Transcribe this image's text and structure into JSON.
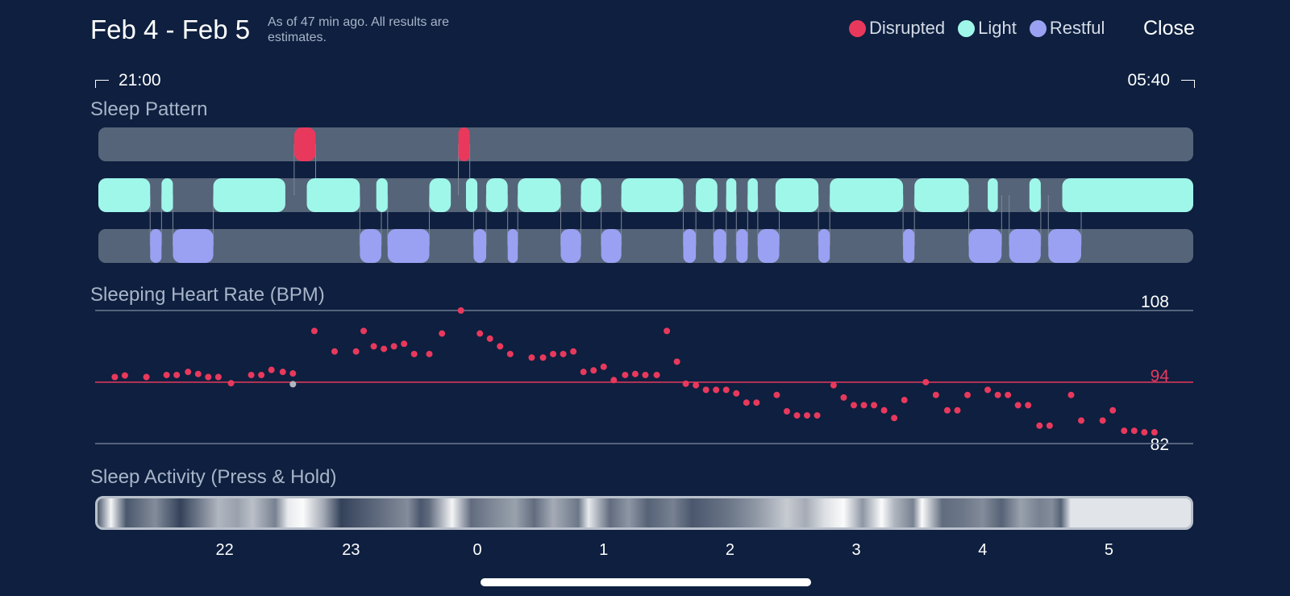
{
  "header": {
    "title": "Feb 4 - Feb 5",
    "subtitle": "As of 47 min ago. All results are estimates.",
    "close_label": "Close"
  },
  "legend": [
    {
      "label": "Disrupted",
      "color": "#e8395d"
    },
    {
      "label": "Light",
      "color": "#9ff7ea"
    },
    {
      "label": "Restful",
      "color": "#9aa1f2"
    }
  ],
  "timeline": {
    "start": "21:00",
    "end": "05:40"
  },
  "sleep_pattern": {
    "label": "Sleep Pattern",
    "colors": {
      "disrupted": "#e8395d",
      "light": "#9ff7ea",
      "restful": "#9aa1f2",
      "track": "#556478"
    },
    "start_hour": 21.0,
    "end_hour": 29.667,
    "disrupted": [
      [
        22.55,
        22.72
      ],
      [
        23.85,
        23.94
      ]
    ],
    "light": [
      [
        21.0,
        21.41
      ],
      [
        21.5,
        21.59
      ],
      [
        21.91,
        22.48
      ],
      [
        22.65,
        23.07
      ],
      [
        23.2,
        23.29
      ],
      [
        23.62,
        23.79
      ],
      [
        23.91,
        24.0
      ],
      [
        24.07,
        24.24
      ],
      [
        24.32,
        24.66
      ],
      [
        24.82,
        24.98
      ],
      [
        25.14,
        25.63
      ],
      [
        25.73,
        25.9
      ],
      [
        25.97,
        26.05
      ],
      [
        26.14,
        26.22
      ],
      [
        26.36,
        26.7
      ],
      [
        26.79,
        27.37
      ],
      [
        27.46,
        27.89
      ],
      [
        28.04,
        28.12
      ],
      [
        28.37,
        28.46
      ],
      [
        28.63,
        29.667
      ]
    ],
    "restful": [
      [
        21.41,
        21.5
      ],
      [
        21.59,
        21.91
      ],
      [
        23.07,
        23.24
      ],
      [
        23.29,
        23.62
      ],
      [
        23.97,
        24.07
      ],
      [
        24.24,
        24.32
      ],
      [
        24.66,
        24.82
      ],
      [
        24.98,
        25.14
      ],
      [
        25.63,
        25.73
      ],
      [
        25.87,
        25.97
      ],
      [
        26.05,
        26.14
      ],
      [
        26.22,
        26.39
      ],
      [
        26.7,
        26.79
      ],
      [
        27.37,
        27.46
      ],
      [
        27.89,
        28.15
      ],
      [
        28.21,
        28.46
      ],
      [
        28.52,
        28.78
      ]
    ]
  },
  "heart_rate": {
    "label": "Sleeping Heart Rate (BPM)",
    "max_label": "108",
    "avg_label": "94",
    "min_label": "82",
    "max": 108,
    "avg": 94,
    "min": 82,
    "point_color": "#e8395d",
    "avg_color": "#e8395d",
    "outlier_color": "#b0b6c0",
    "points": [
      [
        21.13,
        95.0
      ],
      [
        21.21,
        95.3
      ],
      [
        21.38,
        95.0
      ],
      [
        21.54,
        95.4
      ],
      [
        21.62,
        95.4
      ],
      [
        21.71,
        96.0
      ],
      [
        21.79,
        95.6
      ],
      [
        21.87,
        95.0
      ],
      [
        21.95,
        95.0
      ],
      [
        22.05,
        93.8
      ],
      [
        22.21,
        95.4
      ],
      [
        22.29,
        95.4
      ],
      [
        22.37,
        96.4
      ],
      [
        22.46,
        96.0
      ],
      [
        22.54,
        95.7
      ],
      [
        22.71,
        104.0
      ],
      [
        22.87,
        100.0
      ],
      [
        23.04,
        100.0
      ],
      [
        23.1,
        104.0
      ],
      [
        23.18,
        101.0
      ],
      [
        23.26,
        100.5
      ],
      [
        23.34,
        101.0
      ],
      [
        23.42,
        101.5
      ],
      [
        23.5,
        99.5
      ],
      [
        23.62,
        99.5
      ],
      [
        23.72,
        103.5
      ],
      [
        23.87,
        108.0
      ],
      [
        24.02,
        103.5
      ],
      [
        24.1,
        102.5
      ],
      [
        24.18,
        101.0
      ],
      [
        24.26,
        99.5
      ],
      [
        24.43,
        98.8
      ],
      [
        24.52,
        98.8
      ],
      [
        24.6,
        99.5
      ],
      [
        24.68,
        99.5
      ],
      [
        24.76,
        100.0
      ],
      [
        24.84,
        96.0
      ],
      [
        24.92,
        96.3
      ],
      [
        25.0,
        97.0
      ],
      [
        25.08,
        94.4
      ],
      [
        25.17,
        95.4
      ],
      [
        25.25,
        95.6
      ],
      [
        25.33,
        95.4
      ],
      [
        25.42,
        95.4
      ],
      [
        25.5,
        104.0
      ],
      [
        25.58,
        98.0
      ],
      [
        25.65,
        93.7
      ],
      [
        25.73,
        93.4
      ],
      [
        25.81,
        92.5
      ],
      [
        25.89,
        92.5
      ],
      [
        25.97,
        92.5
      ],
      [
        26.05,
        91.8
      ],
      [
        26.13,
        90.0
      ],
      [
        26.21,
        90.0
      ],
      [
        26.37,
        91.5
      ],
      [
        26.45,
        88.3
      ],
      [
        26.53,
        87.5
      ],
      [
        26.61,
        87.5
      ],
      [
        26.69,
        87.5
      ],
      [
        26.82,
        93.4
      ],
      [
        26.9,
        91.0
      ],
      [
        26.98,
        89.5
      ],
      [
        27.06,
        89.5
      ],
      [
        27.14,
        89.5
      ],
      [
        27.22,
        88.5
      ],
      [
        27.3,
        87.0
      ],
      [
        27.38,
        90.5
      ],
      [
        27.55,
        94.0
      ],
      [
        27.63,
        91.5
      ],
      [
        27.72,
        88.5
      ],
      [
        27.8,
        88.5
      ],
      [
        27.88,
        91.5
      ],
      [
        28.04,
        92.5
      ],
      [
        28.12,
        91.5
      ],
      [
        28.2,
        91.5
      ],
      [
        28.28,
        89.5
      ],
      [
        28.36,
        89.5
      ],
      [
        28.45,
        85.5
      ],
      [
        28.53,
        85.5
      ],
      [
        28.7,
        91.5
      ],
      [
        28.78,
        86.5
      ],
      [
        28.95,
        86.5
      ],
      [
        29.03,
        88.5
      ],
      [
        29.12,
        84.5
      ],
      [
        29.2,
        84.5
      ],
      [
        29.28,
        84.2
      ],
      [
        29.36,
        84.2
      ]
    ],
    "outliers": [
      [
        22.54,
        93.6
      ]
    ]
  },
  "sleep_activity": {
    "label": "Sleep Activity (Press & Hold)",
    "base_color": "#1d2d48",
    "highlight_color": "#ffffff",
    "bands": [
      [
        21.0,
        0.25
      ],
      [
        21.1,
        0.95
      ],
      [
        21.22,
        0.2
      ],
      [
        21.45,
        0.45
      ],
      [
        21.65,
        0.1
      ],
      [
        21.95,
        0.65
      ],
      [
        22.1,
        0.55
      ],
      [
        22.22,
        0.7
      ],
      [
        22.4,
        0.4
      ],
      [
        22.5,
        0.9
      ],
      [
        22.62,
        0.98
      ],
      [
        22.78,
        0.6
      ],
      [
        22.92,
        0.1
      ],
      [
        23.15,
        0.25
      ],
      [
        23.45,
        0.45
      ],
      [
        23.55,
        0.2
      ],
      [
        23.62,
        0.3
      ],
      [
        23.8,
        0.95
      ],
      [
        23.95,
        0.3
      ],
      [
        24.15,
        0.45
      ],
      [
        24.3,
        0.55
      ],
      [
        24.45,
        0.3
      ],
      [
        24.6,
        0.6
      ],
      [
        24.8,
        0.35
      ],
      [
        24.88,
        0.9
      ],
      [
        25.05,
        0.3
      ],
      [
        25.2,
        0.5
      ],
      [
        25.35,
        0.25
      ],
      [
        25.55,
        0.4
      ],
      [
        25.7,
        0.2
      ],
      [
        26.0,
        0.35
      ],
      [
        26.2,
        0.5
      ],
      [
        26.45,
        0.75
      ],
      [
        26.6,
        0.6
      ],
      [
        26.75,
        0.85
      ],
      [
        26.9,
        0.98
      ],
      [
        27.05,
        0.5
      ],
      [
        27.2,
        0.98
      ],
      [
        27.3,
        0.65
      ],
      [
        27.45,
        0.4
      ],
      [
        27.52,
        0.98
      ],
      [
        27.68,
        0.3
      ],
      [
        27.85,
        0.35
      ],
      [
        28.0,
        0.45
      ],
      [
        28.15,
        0.25
      ],
      [
        28.3,
        0.55
      ],
      [
        28.45,
        0.4
      ],
      [
        28.55,
        0.45
      ],
      [
        28.62,
        0.25
      ],
      [
        28.7,
        0.9
      ]
    ],
    "tail_start": 28.7,
    "tail_color": "#e1e4e8"
  },
  "axis": {
    "ticks": [
      {
        "label": "22",
        "hour": 22
      },
      {
        "label": "23",
        "hour": 23
      },
      {
        "label": "0",
        "hour": 24
      },
      {
        "label": "1",
        "hour": 25
      },
      {
        "label": "2",
        "hour": 26
      },
      {
        "label": "3",
        "hour": 27
      },
      {
        "label": "4",
        "hour": 28
      },
      {
        "label": "5",
        "hour": 29
      }
    ]
  }
}
